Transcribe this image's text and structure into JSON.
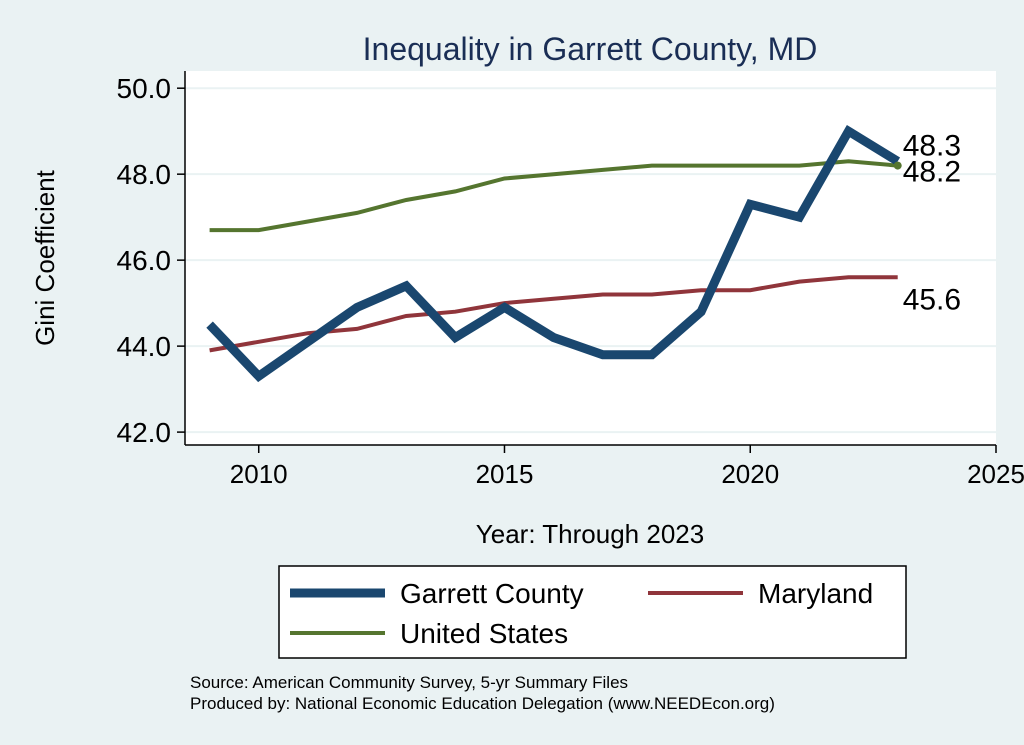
{
  "chart_data": {
    "type": "line",
    "title": "Inequality in Garrett County, MD",
    "xlabel": "Year: Through 2023",
    "ylabel": "Gini Coefficient",
    "x": [
      2009,
      2010,
      2011,
      2012,
      2013,
      2014,
      2015,
      2016,
      2017,
      2018,
      2019,
      2020,
      2021,
      2022,
      2023
    ],
    "xlim": [
      2008.5,
      2025
    ],
    "ylim": [
      41.7,
      50.4
    ],
    "xticks": [
      "2010",
      "2015",
      "2020",
      "2025"
    ],
    "yticks": [
      "42.0",
      "44.0",
      "46.0",
      "48.0",
      "50.0"
    ],
    "grid": true,
    "legend_position": "bottom",
    "series": [
      {
        "name": "Garrett County",
        "color": "#1a476f",
        "width": 9,
        "values": [
          44.5,
          43.3,
          44.1,
          44.9,
          45.4,
          44.2,
          44.9,
          44.2,
          43.8,
          43.8,
          44.8,
          47.3,
          47.0,
          49.0,
          48.3
        ],
        "end_label": "48.3"
      },
      {
        "name": "Maryland",
        "color": "#90353b",
        "width": 4,
        "values": [
          43.9,
          44.1,
          44.3,
          44.4,
          44.7,
          44.8,
          45.0,
          45.1,
          45.2,
          45.2,
          45.3,
          45.3,
          45.5,
          45.6,
          45.6
        ],
        "end_label": "45.6"
      },
      {
        "name": "United States",
        "color": "#55752f",
        "width": 4,
        "values": [
          46.7,
          46.7,
          46.9,
          47.1,
          47.4,
          47.6,
          47.9,
          48.0,
          48.1,
          48.2,
          48.2,
          48.2,
          48.2,
          48.3,
          48.2
        ],
        "end_label": "48.2"
      }
    ],
    "source_lines": [
      "Source: American Community Survey, 5-yr Summary Files",
      "Produced by: National Economic Education Delegation (www.NEEDEcon.org)"
    ]
  }
}
